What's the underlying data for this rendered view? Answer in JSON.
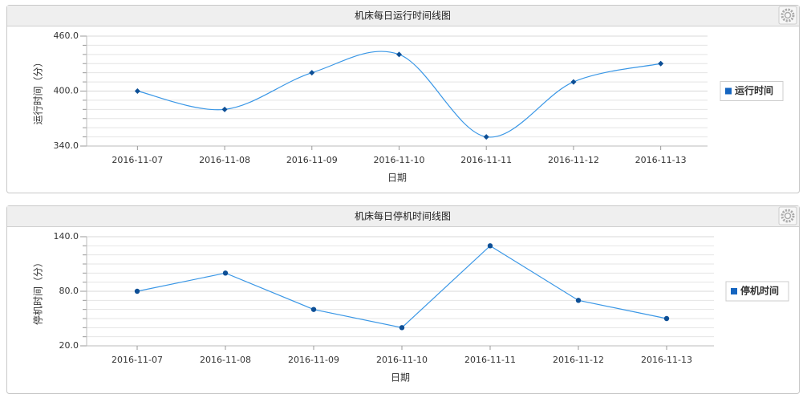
{
  "chart_data": [
    {
      "type": "line",
      "title": "机床每日运行时间线图",
      "y_label": "运行时间（分）",
      "x_label": "日期",
      "categories": [
        "2016-11-07",
        "2016-11-08",
        "2016-11-09",
        "2016-11-10",
        "2016-11-11",
        "2016-11-12",
        "2016-11-13"
      ],
      "series": [
        {
          "name": "运行时间",
          "color": "#3a97e6",
          "marker_color": "#0d4f96",
          "values": [
            400,
            380,
            420,
            440,
            350,
            410,
            430
          ]
        }
      ],
      "ylim": [
        340,
        460
      ],
      "yticks": [
        {
          "value": 340,
          "label": "340.0"
        },
        {
          "value": 400,
          "label": "400.0"
        },
        {
          "value": 460,
          "label": "460.0"
        }
      ],
      "minor_yticks": [
        350,
        360,
        370,
        380,
        390,
        410,
        420,
        430,
        440,
        450
      ],
      "smooth": true,
      "marker": "diamond",
      "grid": true,
      "legend": "right"
    },
    {
      "type": "line",
      "title": "机床每日停机时间线图",
      "y_label": "停机时间（分）",
      "x_label": "日期",
      "categories": [
        "2016-11-07",
        "2016-11-08",
        "2016-11-09",
        "2016-11-10",
        "2016-11-11",
        "2016-11-12",
        "2016-11-13"
      ],
      "series": [
        {
          "name": "停机时间",
          "color": "#3a97e6",
          "marker_color": "#0d4f96",
          "values": [
            80,
            100,
            60,
            40,
            130,
            70,
            50
          ]
        }
      ],
      "ylim": [
        20,
        140
      ],
      "yticks": [
        {
          "value": 20,
          "label": "20.0"
        },
        {
          "value": 80,
          "label": "80.0"
        },
        {
          "value": 140,
          "label": "140.0"
        }
      ],
      "minor_yticks": [
        30,
        40,
        50,
        60,
        70,
        90,
        100,
        110,
        120,
        130
      ],
      "smooth": false,
      "marker": "circle",
      "grid": true,
      "legend": "right"
    }
  ]
}
